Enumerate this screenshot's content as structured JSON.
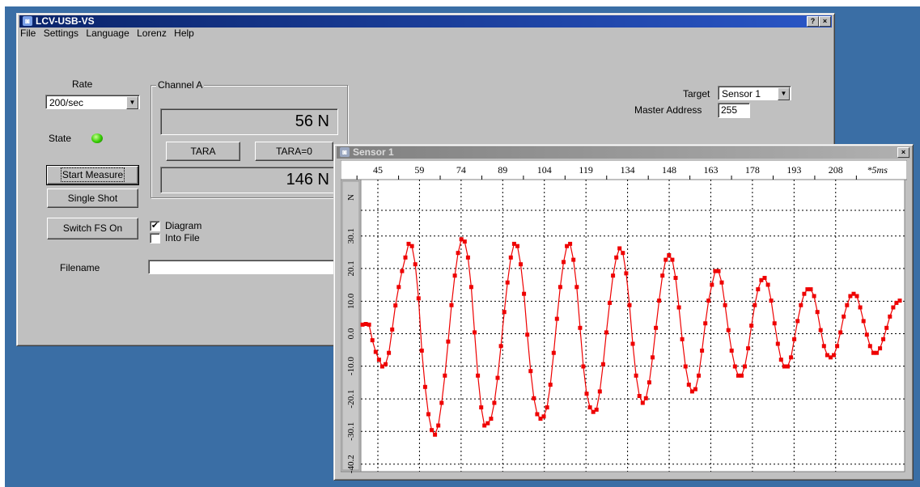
{
  "main_window": {
    "title": "LCV-USB-VS",
    "menu": [
      "File",
      "Settings",
      "Language",
      "Lorenz",
      "Help"
    ],
    "rate_label": "Rate",
    "rate_value": "200/sec",
    "state_label": "State",
    "channel_group": "Channel A",
    "display_1": "56 N",
    "display_2": "146 N",
    "tara_button": "TARA",
    "tara_zero_button": "TARA=0",
    "start_button": "Start Measure",
    "single_shot_button": "Single Shot",
    "switch_fs_button": "Switch FS On",
    "diagram_checkbox": {
      "label": "Diagram",
      "checked": true
    },
    "into_file_checkbox": {
      "label": "Into File",
      "checked": false
    },
    "filename_label": "Filename",
    "filename_value": "",
    "target_label": "Target",
    "target_value": "Sensor 1",
    "master_address_label": "Master Address",
    "master_address_value": "255",
    "titlebar_buttons": [
      "?",
      "×"
    ]
  },
  "sensor_window": {
    "title": "Sensor 1",
    "close_button": "×"
  },
  "chart_data": {
    "type": "line",
    "color": "#ee0000",
    "x_tick_labels": [
      "45",
      "59",
      "74",
      "89",
      "104",
      "119",
      "134",
      "148",
      "163",
      "178",
      "193",
      "208",
      "*5ms"
    ],
    "y_tick_labels": [
      "N",
      "30.1",
      "20.1",
      "10.0",
      "0.0",
      "-10.0",
      "-20.1",
      "-30.1",
      "-40.2"
    ],
    "y_ticks": [
      30.1,
      20.1,
      10.0,
      0.0,
      -10.0,
      -20.1,
      -30.1,
      -40.2
    ],
    "ylim": [
      -45,
      45
    ],
    "grid": true,
    "series": [
      {
        "values": [
          0.3,
          0.5,
          0.3,
          -4.5,
          -8.1,
          -10.5,
          -12.6,
          -11.9,
          -8.4,
          -1.2,
          6.2,
          11.9,
          16.8,
          21.0,
          25.2,
          24.5,
          18.9,
          8.4,
          -7.7,
          -18.9,
          -27.3,
          -32.2,
          -33.6,
          -30.8,
          -23.8,
          -15.4,
          -4.9,
          6.3,
          15.4,
          22.4,
          26.6,
          25.9,
          21.0,
          11.9,
          -2.1,
          -15.4,
          -25.2,
          -30.8,
          -30.1,
          -28.7,
          -23.8,
          -16.1,
          -6.3,
          4.2,
          13.3,
          21.0,
          25.2,
          24.5,
          18.9,
          9.8,
          -2.8,
          -14.0,
          -22.4,
          -27.3,
          -28.7,
          -28.0,
          -25.2,
          -18.2,
          -8.4,
          2.1,
          11.9,
          19.6,
          24.5,
          25.2,
          20.3,
          11.9,
          -0.7,
          -12.6,
          -21.0,
          -25.2,
          -26.6,
          -25.9,
          -20.3,
          -11.9,
          -2.1,
          7.0,
          15.4,
          21.0,
          23.8,
          22.4,
          16.1,
          6.3,
          -5.6,
          -15.4,
          -21.7,
          -23.8,
          -22.4,
          -17.5,
          -9.8,
          -0.7,
          7.7,
          15.4,
          20.3,
          21.7,
          20.3,
          14.7,
          5.6,
          -4.2,
          -12.6,
          -18.2,
          -20.3,
          -19.6,
          -15.4,
          -7.7,
          0.7,
          7.7,
          12.6,
          16.8,
          16.8,
          13.3,
          6.3,
          -1.4,
          -7.7,
          -12.6,
          -15.4,
          -15.4,
          -12.6,
          -7.0,
          0.0,
          6.3,
          11.2,
          14.0,
          14.7,
          12.6,
          7.7,
          0.7,
          -5.6,
          -10.5,
          -12.6,
          -12.6,
          -9.8,
          -4.2,
          1.4,
          6.3,
          9.8,
          11.2,
          11.2,
          9.1,
          4.2,
          -1.4,
          -6.3,
          -9.1,
          -9.8,
          -9.1,
          -6.3,
          -2.1,
          2.8,
          6.3,
          9.1,
          9.8,
          9.1,
          5.6,
          1.4,
          -2.8,
          -6.3,
          -8.4,
          -8.4,
          -7.0,
          -4.2,
          -0.7,
          2.8,
          5.6,
          7.0,
          7.7
        ]
      }
    ]
  }
}
